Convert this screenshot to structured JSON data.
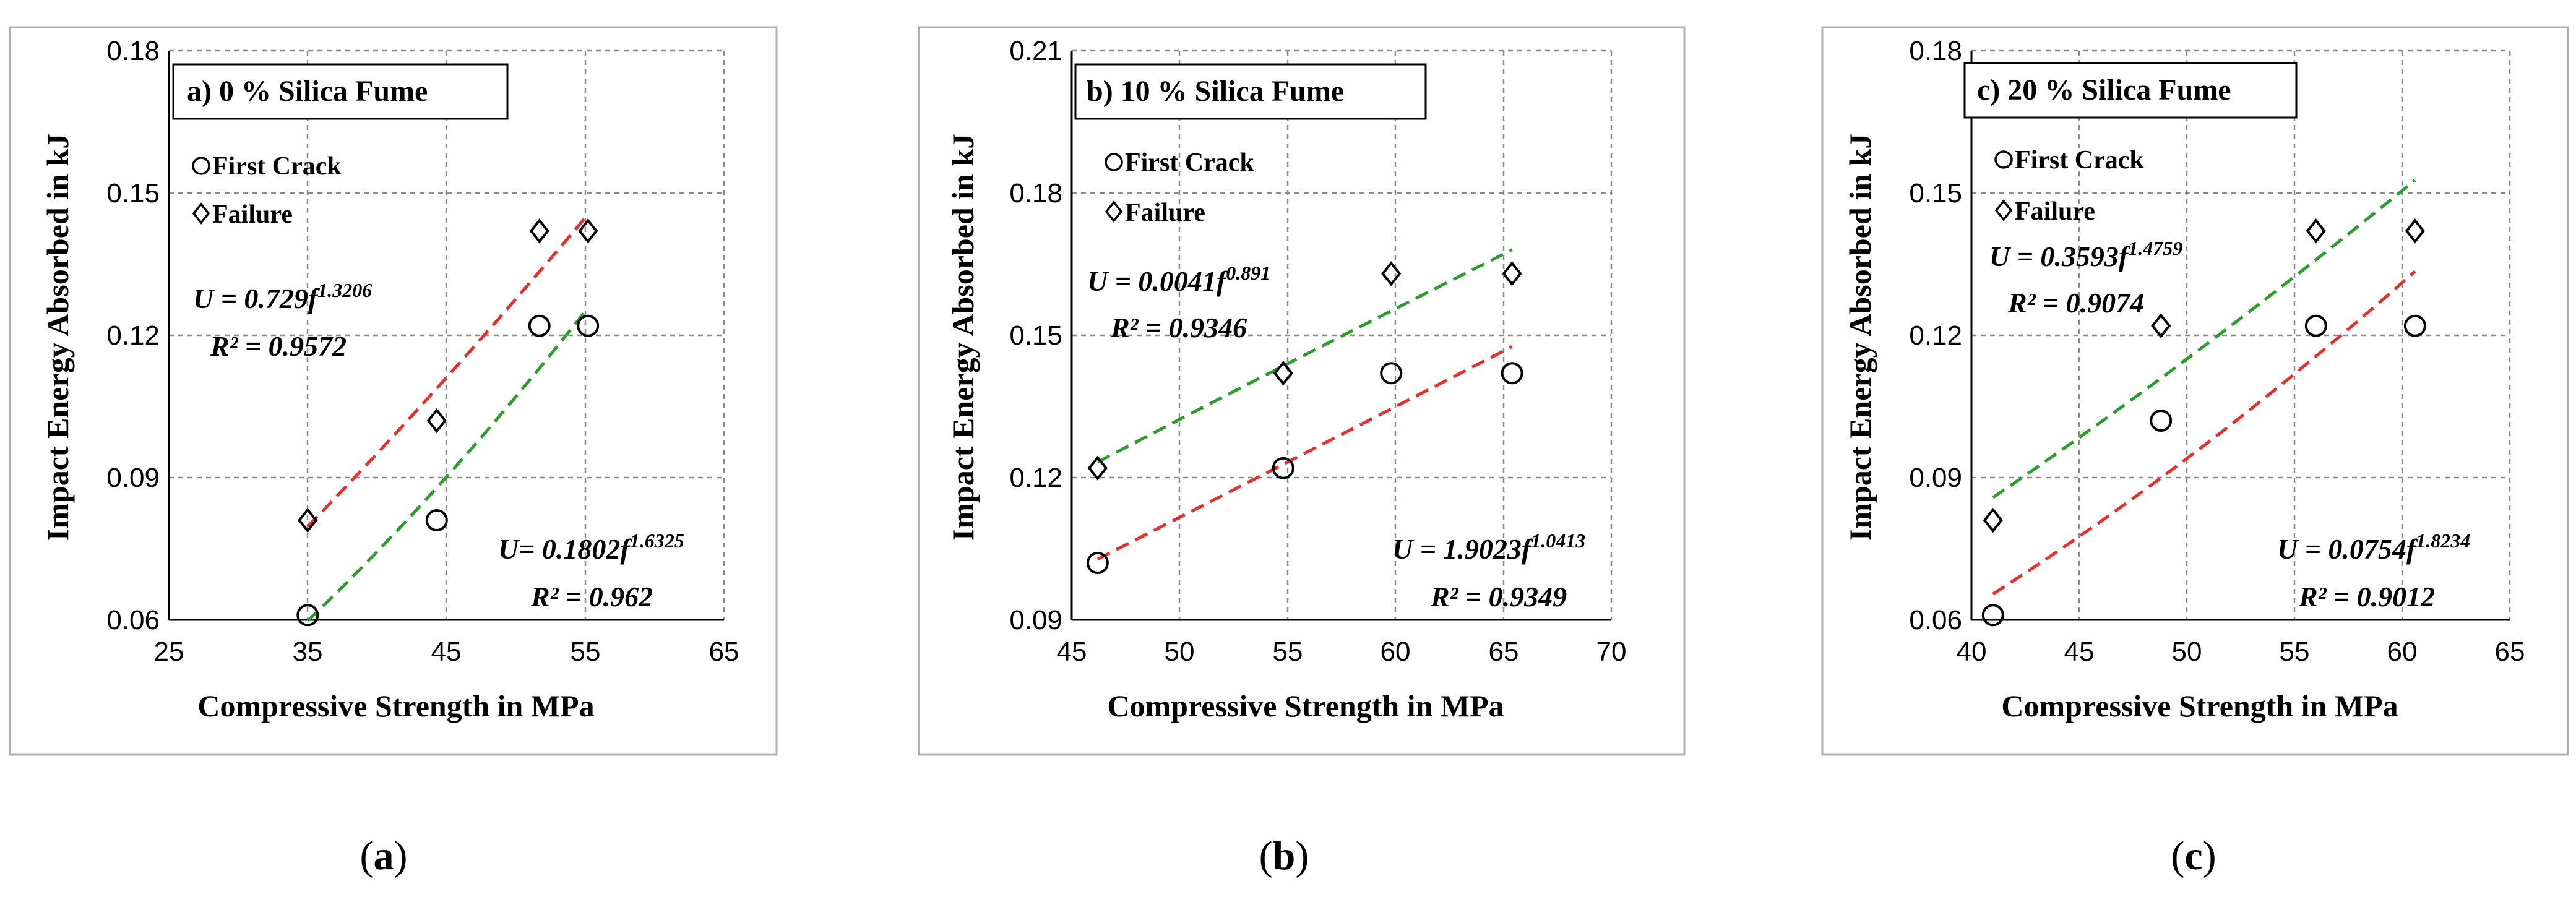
{
  "colors": {
    "first_crack_fit": "#e8302a",
    "failure_fit": "#2a9d2a",
    "marker": "#000000",
    "grid": "#8a8a8a"
  },
  "chart_data": [
    {
      "type": "scatter",
      "caption_letter": "a",
      "title": "a) 0 % Silica Fume",
      "xlabel": "Compressive Strength in MPa",
      "ylabel": "Impact Energy Absorbed in kJ",
      "xlim": [
        25,
        65
      ],
      "xticks": [
        25,
        35,
        45,
        55,
        65
      ],
      "ylim": [
        0.06,
        0.18
      ],
      "yticks": [
        0.06,
        0.09,
        0.12,
        0.15,
        0.18
      ],
      "legend": {
        "first_crack": "First Crack",
        "failure": "Failure",
        "position": "top-left"
      },
      "series": [
        {
          "name": "First Crack",
          "marker": "circle",
          "x": [
            35.0,
            44.3,
            51.7,
            55.2
          ],
          "y": [
            0.061,
            0.081,
            0.122,
            0.122
          ],
          "fit": {
            "a": 0.1802,
            "b": 1.6325,
            "r2": 0.962,
            "x_range": [
              35.0,
              55.2
            ]
          }
        },
        {
          "name": "Failure",
          "marker": "diamond",
          "x": [
            35.0,
            44.3,
            51.7,
            55.2
          ],
          "y": [
            0.081,
            0.102,
            0.142,
            0.142
          ],
          "fit": {
            "a": 0.729,
            "b": 1.3206,
            "r2": 0.9572,
            "x_range": [
              35.0,
              55.2
            ]
          }
        }
      ],
      "annotations": {
        "failure_eq_prefix": "U = 0.729f",
        "failure_eq_exp": "1.3206",
        "failure_r2": "R² = 0.9572",
        "first_crack_eq_prefix": "U= 0.1802f",
        "first_crack_eq_exp": "1.6325",
        "first_crack_r2": "R² = 0.962"
      }
    },
    {
      "type": "scatter",
      "caption_letter": "b",
      "title": "b) 10 % Silica Fume",
      "xlabel": "Compressive Strength in MPa",
      "ylabel": "Impact Energy Absorbed in kJ",
      "xlim": [
        45,
        70
      ],
      "xticks": [
        45,
        50,
        55,
        60,
        65,
        70
      ],
      "ylim": [
        0.09,
        0.21
      ],
      "yticks": [
        0.09,
        0.12,
        0.15,
        0.18,
        0.21
      ],
      "legend": {
        "first_crack": "First Crack",
        "failure": "Failure",
        "position": "top-left"
      },
      "series": [
        {
          "name": "First Crack",
          "marker": "circle",
          "x": [
            46.2,
            54.8,
            59.8,
            65.4
          ],
          "y": [
            0.102,
            0.122,
            0.142,
            0.142
          ],
          "fit": {
            "a": 1.9023,
            "b": 1.0413,
            "r2": 0.9349,
            "x_range": [
              46.2,
              65.4
            ]
          }
        },
        {
          "name": "Failure",
          "marker": "diamond",
          "x": [
            46.2,
            54.8,
            59.8,
            65.4
          ],
          "y": [
            0.122,
            0.142,
            0.163,
            0.163
          ],
          "fit": {
            "a": 0.0041,
            "b": 0.891,
            "r2": 0.9346,
            "x_range": [
              46.2,
              65.4
            ]
          }
        }
      ],
      "annotations": {
        "failure_eq_prefix": "U = 0.0041f",
        "failure_eq_exp": "0.891",
        "failure_r2": "R² = 0.9346",
        "first_crack_eq_prefix": "U = 1.9023f",
        "first_crack_eq_exp": "1.0413",
        "first_crack_r2": "R² = 0.9349"
      }
    },
    {
      "type": "scatter",
      "caption_letter": "c",
      "title": "c) 20 % Silica Fume",
      "xlabel": "Compressive Strength in MPa",
      "ylabel": "Impact Energy Absorbed in kJ",
      "xlim": [
        40,
        65
      ],
      "xticks": [
        40,
        45,
        50,
        55,
        60,
        65
      ],
      "ylim": [
        0.06,
        0.18
      ],
      "yticks": [
        0.06,
        0.09,
        0.12,
        0.15,
        0.18
      ],
      "legend": {
        "first_crack": "First Crack",
        "failure": "Failure",
        "position": "top-left"
      },
      "series": [
        {
          "name": "First Crack",
          "marker": "circle",
          "x": [
            41.0,
            48.8,
            56.0,
            60.6
          ],
          "y": [
            0.061,
            0.102,
            0.122,
            0.122
          ],
          "fit": {
            "a": 0.0754,
            "b": 1.8234,
            "r2": 0.9012,
            "x_range": [
              41.0,
              60.6
            ]
          }
        },
        {
          "name": "Failure",
          "marker": "diamond",
          "x": [
            41.0,
            48.8,
            56.0,
            60.6
          ],
          "y": [
            0.081,
            0.122,
            0.142,
            0.142
          ],
          "fit": {
            "a": 0.3593,
            "b": 1.4759,
            "r2": 0.9074,
            "x_range": [
              41.0,
              60.6
            ]
          }
        }
      ],
      "annotations": {
        "failure_eq_prefix": "U = 0.3593f",
        "failure_eq_exp": "1.4759",
        "failure_r2": "R² = 0.9074",
        "first_crack_eq_prefix": "U = 0.0754f",
        "first_crack_eq_exp": "1.8234",
        "first_crack_r2": "R² = 0.9012"
      }
    }
  ]
}
